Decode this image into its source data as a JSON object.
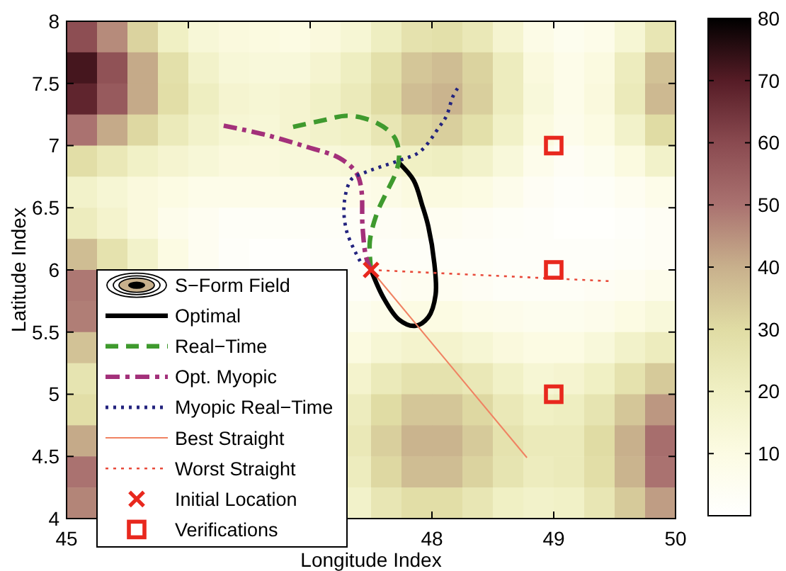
{
  "chart_data": {
    "type": "heatmap",
    "xlabel": "Longitude Index",
    "ylabel": "Latitude Index",
    "xlim": [
      45,
      50
    ],
    "ylim": [
      4,
      8
    ],
    "xticks": [
      45,
      {
        "value": 46,
        "label": null
      },
      {
        "value": 47,
        "label": null
      },
      48,
      49,
      50
    ],
    "yticks": [
      4,
      4.5,
      5,
      5.5,
      6,
      6.5,
      7,
      7.5,
      8
    ],
    "clim": [
      0,
      80
    ],
    "cticks": [
      10,
      20,
      30,
      40,
      50,
      60,
      70,
      80
    ],
    "cells": [
      [
        59,
        46,
        32,
        20,
        14,
        12,
        11,
        10,
        12,
        15,
        21,
        27,
        28,
        24,
        16,
        9,
        6,
        8,
        15,
        25
      ],
      [
        72,
        58,
        41,
        28,
        18,
        14,
        13,
        13,
        16,
        21,
        28,
        35,
        37,
        32,
        22,
        12,
        8,
        11,
        22,
        36
      ],
      [
        68,
        56,
        41,
        29,
        21,
        16,
        15,
        16,
        19,
        23,
        30,
        37,
        39,
        33,
        22,
        13,
        8,
        12,
        23,
        38
      ],
      [
        50,
        41,
        31,
        23,
        18,
        15,
        14,
        16,
        18,
        20,
        25,
        31,
        33,
        28,
        19,
        11,
        7,
        10,
        18,
        30
      ],
      [
        29,
        24,
        19,
        16,
        14,
        12,
        12,
        13,
        13,
        14,
        17,
        20,
        21,
        18,
        13,
        7,
        4,
        6,
        11,
        18
      ],
      [
        18,
        15,
        12,
        10,
        8,
        8,
        8,
        8,
        8,
        8,
        9,
        11,
        11,
        10,
        7,
        4,
        2,
        3,
        5,
        8
      ],
      [
        22,
        17,
        12,
        7,
        5,
        3,
        3,
        3,
        3,
        3,
        4,
        5,
        5,
        4,
        3,
        2,
        1,
        1,
        2,
        4
      ],
      [
        37,
        27,
        18,
        10,
        5,
        2,
        1,
        1,
        2,
        2,
        3,
        3,
        3,
        3,
        2,
        2,
        2,
        2,
        3,
        4
      ],
      [
        49,
        null,
        null,
        null,
        null,
        null,
        null,
        null,
        null,
        3,
        4,
        5,
        5,
        4,
        3,
        3,
        3,
        4,
        5,
        7
      ],
      [
        48,
        null,
        null,
        null,
        null,
        null,
        null,
        null,
        null,
        6,
        8,
        10,
        10,
        8,
        7,
        6,
        6,
        7,
        10,
        13
      ],
      [
        36,
        null,
        null,
        null,
        null,
        null,
        null,
        null,
        null,
        11,
        15,
        17,
        17,
        15,
        12,
        10,
        10,
        13,
        18,
        22
      ],
      [
        26,
        null,
        null,
        null,
        null,
        null,
        null,
        null,
        null,
        17,
        23,
        27,
        27,
        24,
        19,
        15,
        16,
        20,
        27,
        34
      ],
      [
        29,
        null,
        null,
        null,
        null,
        null,
        null,
        null,
        null,
        22,
        30,
        35,
        35,
        31,
        24,
        20,
        21,
        26,
        35,
        44
      ],
      [
        41,
        null,
        null,
        null,
        null,
        null,
        null,
        null,
        null,
        24,
        33,
        39,
        39,
        34,
        27,
        23,
        23,
        30,
        40,
        51
      ],
      [
        50,
        null,
        null,
        null,
        null,
        null,
        null,
        null,
        null,
        22,
        31,
        37,
        37,
        32,
        26,
        22,
        23,
        29,
        39,
        50
      ],
      [
        47,
        null,
        null,
        null,
        null,
        null,
        null,
        null,
        null,
        18,
        25,
        29,
        29,
        25,
        20,
        18,
        19,
        25,
        34,
        43
      ]
    ],
    "legend": "bottom left",
    "series": [
      {
        "name": "S−Form Field",
        "type": "heatmap"
      },
      {
        "name": "Optimal",
        "type": "line",
        "color": "#000000",
        "line_style": "solid",
        "x": [
          47.5,
          47.6,
          47.73,
          47.86,
          47.97,
          48.03,
          48.02,
          47.97,
          47.92,
          47.85,
          47.73
        ],
        "values": [
          6.0,
          5.78,
          5.6,
          5.55,
          5.62,
          5.8,
          6.05,
          6.35,
          6.52,
          6.72,
          6.86
        ]
      },
      {
        "name": "Real−Time",
        "type": "line",
        "color": "#3f9a2e",
        "line_style": "dashed",
        "x": [
          47.5,
          47.49,
          47.55,
          47.62,
          47.71,
          47.73,
          47.69,
          47.55,
          47.32,
          47.09,
          46.86
        ],
        "values": [
          6.0,
          6.23,
          6.46,
          6.61,
          6.8,
          6.93,
          7.07,
          7.18,
          7.24,
          7.2,
          7.15
        ]
      },
      {
        "name": "Opt. Myopic",
        "type": "line",
        "color": "#a3307a",
        "line_style": "dashdot",
        "x": [
          47.5,
          47.46,
          47.43,
          47.42,
          47.38,
          47.24,
          46.97,
          46.62,
          46.29
        ],
        "values": [
          6.0,
          6.1,
          6.35,
          6.65,
          6.78,
          6.9,
          6.99,
          7.09,
          7.16
        ]
      },
      {
        "name": "Myopic Real−Time",
        "type": "line",
        "color": "#23237e",
        "line_style": "dotted",
        "x": [
          47.41,
          47.3,
          47.28,
          47.34,
          47.44,
          47.55,
          47.73,
          47.9,
          48.06,
          48.12,
          48.17,
          48.21
        ],
        "values": [
          6.07,
          6.31,
          6.54,
          6.73,
          6.78,
          6.82,
          6.88,
          6.95,
          7.15,
          7.24,
          7.39,
          7.46
        ]
      },
      {
        "name": "Best Straight",
        "type": "line",
        "color": "#f08262",
        "line_style": "solid",
        "x": [
          47.5,
          48.78
        ],
        "values": [
          6.0,
          4.49
        ]
      },
      {
        "name": "Worst Straight",
        "type": "line",
        "color": "#e84a3a",
        "line_style": "dotted",
        "x": [
          47.5,
          49.45
        ],
        "values": [
          6.0,
          5.91
        ]
      },
      {
        "name": "Initial Location",
        "type": "scatter",
        "color": "#e8281e",
        "marker": "cross",
        "x": [
          47.5
        ],
        "values": [
          6.0
        ]
      },
      {
        "name": "Verifications",
        "type": "scatter",
        "color": "#e8281e",
        "marker": "square",
        "x": [
          49,
          49,
          49
        ],
        "values": [
          7,
          6,
          5
        ]
      }
    ]
  }
}
